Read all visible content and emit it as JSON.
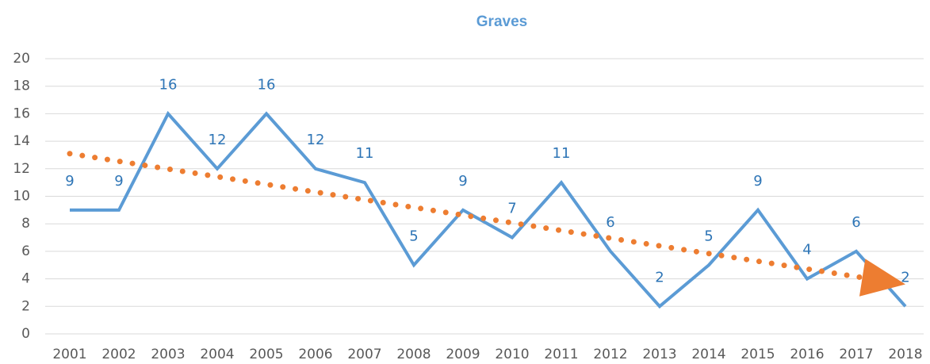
{
  "chart_data": {
    "type": "line",
    "title": "Graves",
    "categories": [
      "2001",
      "2002",
      "2003",
      "2004",
      "2005",
      "2006",
      "2007",
      "2008",
      "2009",
      "2010",
      "2011",
      "2012",
      "2013",
      "2014",
      "2015",
      "2016",
      "2017",
      "2018"
    ],
    "series": [
      {
        "name": "Graves",
        "color": "#5b9bd5",
        "values": [
          9,
          9,
          16,
          12,
          16,
          12,
          11,
          5,
          9,
          7,
          11,
          6,
          2,
          5,
          9,
          4,
          6,
          2
        ]
      }
    ],
    "trend": {
      "color": "#ed7d31",
      "start": 13.1,
      "end": 3.6
    },
    "ylim": [
      0,
      20
    ],
    "yticks": [
      0,
      2,
      4,
      6,
      8,
      10,
      12,
      14,
      16,
      18,
      20
    ],
    "grid": true,
    "data_labels": true
  }
}
